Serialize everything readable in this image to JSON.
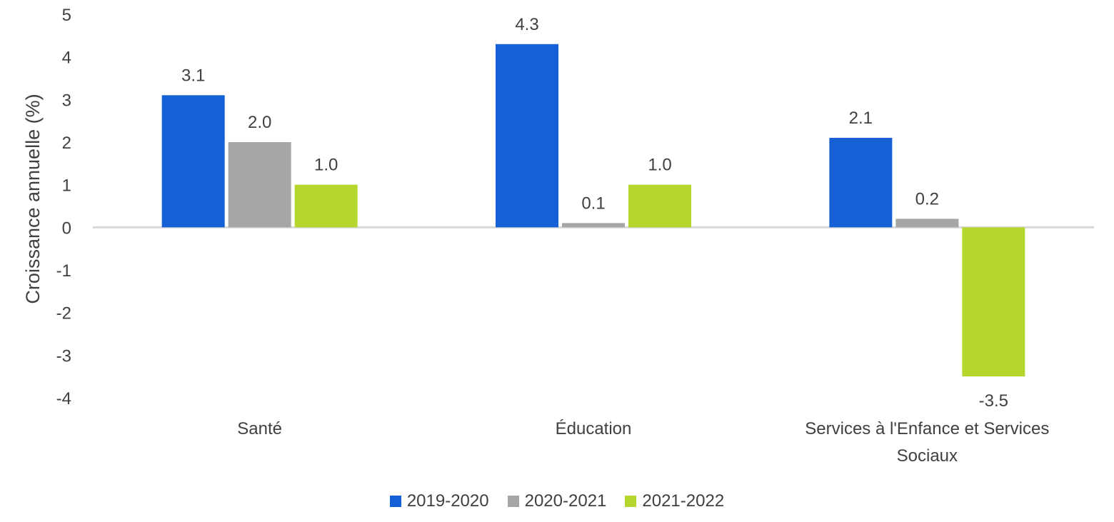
{
  "chart_data": {
    "type": "bar",
    "title": "",
    "xlabel": "",
    "ylabel": "Croissance annuelle (%)",
    "ylim": [
      -4,
      5
    ],
    "yticks": [
      "5",
      "4",
      "3",
      "2",
      "1",
      "0",
      "-1",
      "-2",
      "-3",
      "-4"
    ],
    "categories": [
      {
        "lines": [
          "Santé"
        ]
      },
      {
        "lines": [
          "Éducation"
        ]
      },
      {
        "lines": [
          "Services à l'Enfance et Services",
          "Sociaux"
        ]
      }
    ],
    "series": [
      {
        "name": "2019-2020",
        "color": "#1560D4",
        "values": [
          3.1,
          4.3,
          2.1
        ],
        "labels": [
          "3.1",
          "4.3",
          "2.1"
        ]
      },
      {
        "name": "2020-2021",
        "color": "#A6A6A6",
        "values": [
          2.0,
          0.1,
          0.2
        ],
        "labels": [
          "2.0",
          "0.1",
          "0.2"
        ]
      },
      {
        "name": "2021-2022",
        "color": "#B4D62D",
        "values": [
          1.0,
          1.0,
          -3.5
        ],
        "labels": [
          "1.0",
          "1.0",
          "-3.5"
        ]
      }
    ],
    "legend_position": "bottom",
    "grid": false
  }
}
